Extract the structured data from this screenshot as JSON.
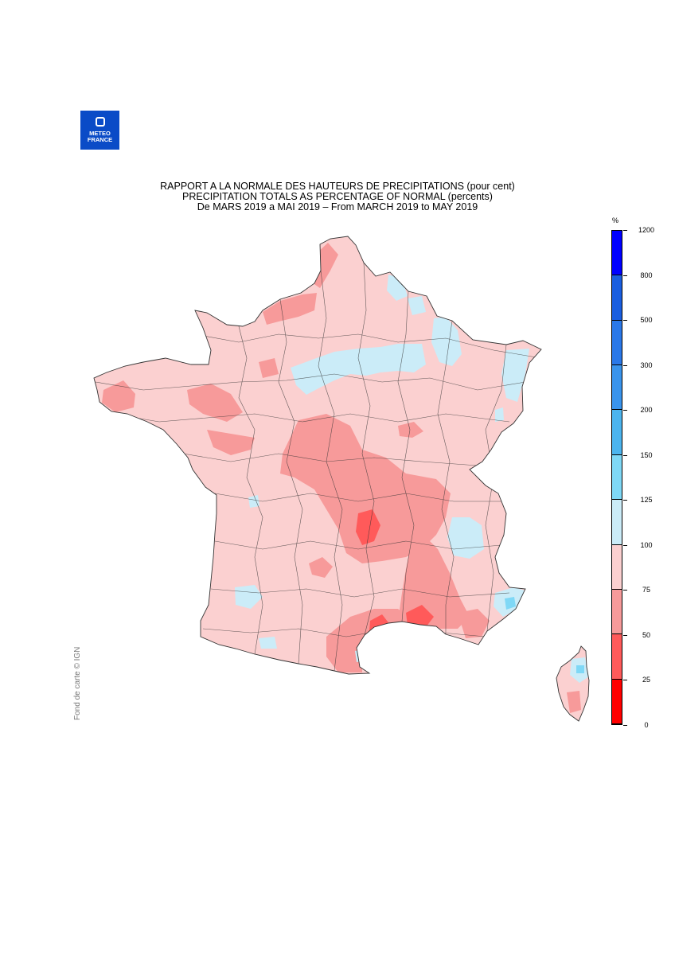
{
  "logo": {
    "line1": "METEO",
    "line2": "FRANCE"
  },
  "title": {
    "line1": "RAPPORT A LA NORMALE DES HAUTEURS DE PRECIPITATIONS (pour cent)",
    "line2": "PRECIPITATION TOTALS AS PERCENTAGE OF NORMAL (percents)",
    "line3": "De MARS 2019 a MAI 2019 – From MARCH 2019 to MAY 2019"
  },
  "credit": "Fond de carte © IGN",
  "legend": {
    "unit": "%",
    "thresholds": [
      "0",
      "25",
      "50",
      "75",
      "100",
      "125",
      "150",
      "200",
      "300",
      "500",
      "800",
      "1200"
    ],
    "class_colors": [
      "#ff0000",
      "#ff5a5a",
      "#f79a9a",
      "#fbd0d0",
      "#cbecf8",
      "#7fd8f6",
      "#4cb4ee",
      "#3a94ec",
      "#2a78e8",
      "#1a5ee0",
      "#0000ff"
    ]
  },
  "colors": {
    "background": "#ffffff",
    "land": "#fbd0d0",
    "border": "#333333",
    "logo": "#0a4bc7"
  }
}
